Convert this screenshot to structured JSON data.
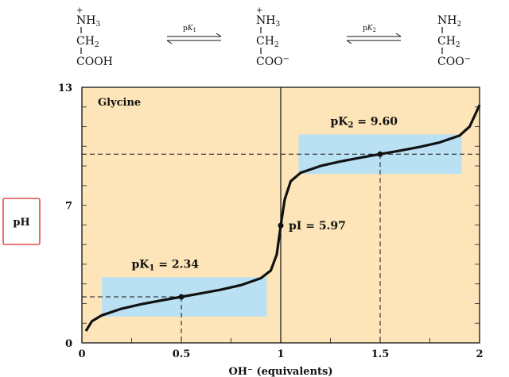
{
  "reaction": {
    "species": [
      {
        "top": "NH",
        "top_sub": "3",
        "top_charge": "+",
        "mid": "CH",
        "mid_sub": "2",
        "bottom": "COOH",
        "bottom_charge": ""
      },
      {
        "top": "NH",
        "top_sub": "3",
        "top_charge": "+",
        "mid": "CH",
        "mid_sub": "2",
        "bottom": "COO",
        "bottom_charge": "−"
      },
      {
        "top": "NH",
        "top_sub": "2",
        "top_charge": "",
        "mid": "CH",
        "mid_sub": "2",
        "bottom": "COO",
        "bottom_charge": "−"
      }
    ],
    "equilibria": [
      {
        "p": "p",
        "k": "K",
        "sub": "1"
      },
      {
        "p": "p",
        "k": "K",
        "sub": "2"
      }
    ]
  },
  "chart_data": {
    "type": "line",
    "title": "Glycine",
    "xlabel": "OH⁻ (equivalents)",
    "ylabel": "pH",
    "xlim": [
      0,
      2
    ],
    "ylim": [
      0,
      13
    ],
    "x_ticks": [
      "0",
      "0.5",
      "1",
      "1.5",
      "2"
    ],
    "y_ticks": [
      "0",
      "7",
      "13"
    ],
    "series": [
      {
        "x": [
          0.02,
          0.05,
          0.1,
          0.2,
          0.3,
          0.4,
          0.5,
          0.6,
          0.7,
          0.8,
          0.9,
          0.95,
          0.98,
          1.0,
          1.02,
          1.05,
          1.1,
          1.2,
          1.3,
          1.4,
          1.5,
          1.6,
          1.7,
          1.8,
          1.9,
          1.95,
          2.0
        ],
        "y": [
          0.6,
          1.1,
          1.4,
          1.74,
          1.97,
          2.16,
          2.34,
          2.52,
          2.71,
          2.94,
          3.29,
          3.68,
          4.5,
          5.97,
          7.3,
          8.22,
          8.65,
          9.0,
          9.23,
          9.42,
          9.6,
          9.78,
          9.97,
          10.2,
          10.55,
          11.0,
          12.1
        ]
      }
    ],
    "annotations": {
      "pK1": {
        "label": "pK",
        "sub": "1",
        "value_text": " = 2.34",
        "x": 0.5,
        "y": 2.34,
        "band_x": [
          0.1,
          0.93
        ],
        "band_y": [
          1.34,
          3.34
        ]
      },
      "pI": {
        "label": "pI = 5.97",
        "x": 1.0,
        "y": 5.97
      },
      "pK2": {
        "label": "pK",
        "sub": "2",
        "value_text": " = 9.60",
        "x": 1.5,
        "y": 9.6,
        "band_x": [
          1.09,
          1.91
        ],
        "band_y": [
          8.6,
          10.6
        ]
      }
    },
    "vertical_line_x": 1.0,
    "colors": {
      "plot_bg": "#fde5b9",
      "band": "#b9e1f3",
      "curve": "#111111",
      "grid": "#444444",
      "highlight_box": "#e34b4b"
    }
  }
}
